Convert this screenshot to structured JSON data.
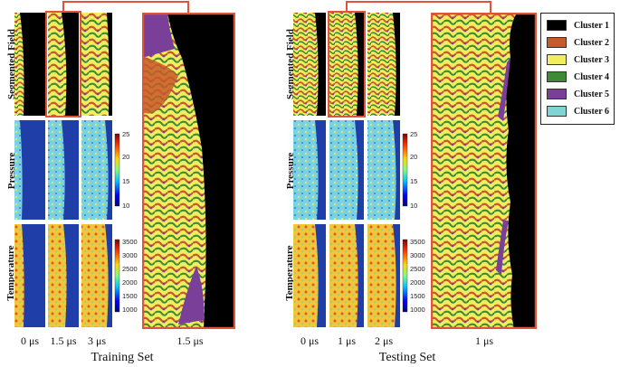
{
  "colors": {
    "cluster1": "#000000",
    "cluster2": "#c8592a",
    "cluster3": "#f0ee60",
    "cluster4": "#3f8a34",
    "cluster5": "#7a3f98",
    "cluster6": "#7fd4d4",
    "highlight": "#e0543c",
    "bg_blue": "#1f3ea8"
  },
  "legend": {
    "items": [
      {
        "label": "Cluster 1",
        "color": "#000000"
      },
      {
        "label": "Cluster 2",
        "color": "#c8592a"
      },
      {
        "label": "Cluster 3",
        "color": "#f0ee60"
      },
      {
        "label": "Cluster 4",
        "color": "#3f8a34"
      },
      {
        "label": "Cluster 5",
        "color": "#7a3f98"
      },
      {
        "label": "Cluster 6",
        "color": "#7fd4d4"
      }
    ]
  },
  "row_labels": {
    "segmented": "Segmented Field",
    "pressure": "Pressure",
    "temperature": "Temperature"
  },
  "training": {
    "caption": "Training Set",
    "time_labels": [
      "0 μs",
      "1.5 μs",
      "3 μs"
    ],
    "zoom_label": "1.5 μs",
    "pressure_ticks": [
      "25",
      "20",
      "15",
      "10"
    ],
    "temperature_ticks": [
      "3500",
      "3000",
      "2500",
      "2000",
      "1500",
      "1000"
    ]
  },
  "testing": {
    "caption": "Testing Set",
    "time_labels": [
      "0 μs",
      "1 μs",
      "2 μs"
    ],
    "zoom_label": "1 μs",
    "pressure_ticks": [
      "25",
      "20",
      "15",
      "10"
    ],
    "temperature_ticks": [
      "3500",
      "3000",
      "2500",
      "2000",
      "1500",
      "1000"
    ]
  }
}
